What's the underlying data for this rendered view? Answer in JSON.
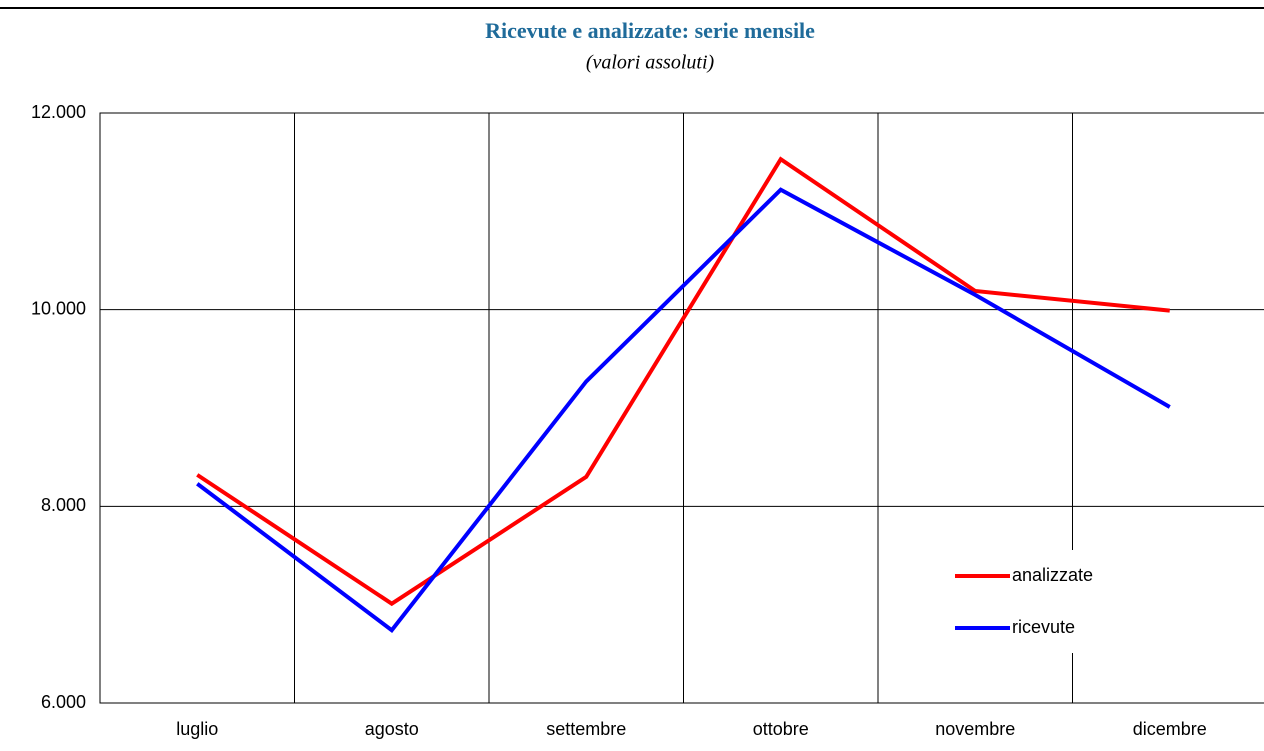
{
  "chart_data": {
    "type": "line",
    "title": "Ricevute e analizzate: serie mensile",
    "subtitle": "(valori assoluti)",
    "categories": [
      "luglio",
      "agosto",
      "settembre",
      "ottobre",
      "novembre",
      "dicembre"
    ],
    "series": [
      {
        "name": "analizzate",
        "color": "#ff0000",
        "values": [
          8320,
          7010,
          8300,
          11530,
          10190,
          9990
        ]
      },
      {
        "name": "ricevute",
        "color": "#0000ff",
        "values": [
          8230,
          6740,
          9270,
          11220,
          10150,
          9010
        ]
      }
    ],
    "ylim": [
      6000,
      12000
    ],
    "yticks": [
      {
        "value": 6000,
        "label": "6.000"
      },
      {
        "value": 8000,
        "label": "8.000"
      },
      {
        "value": 10000,
        "label": "10.000"
      },
      {
        "value": 12000,
        "label": "12.000"
      }
    ],
    "grid": true,
    "legend": "lower right"
  }
}
